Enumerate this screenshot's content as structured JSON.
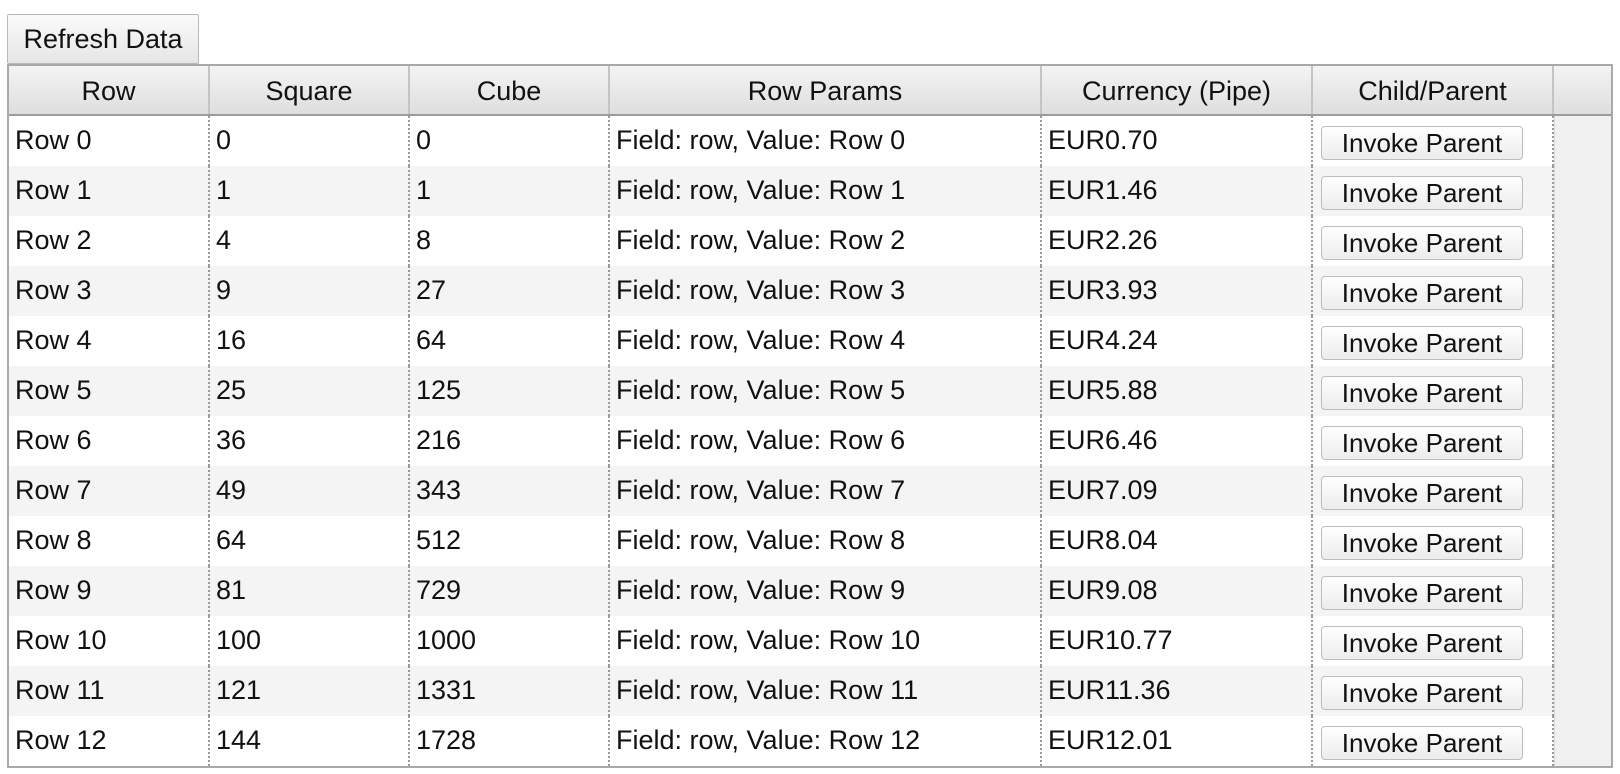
{
  "toolbar": {
    "refresh_label": "Refresh Data"
  },
  "grid": {
    "columns": [
      "Row",
      "Square",
      "Cube",
      "Row Params",
      "Currency (Pipe)",
      "Child/Parent"
    ],
    "rows": [
      {
        "row": "Row 0",
        "square": "0",
        "cube": "0",
        "params": "Field: row, Value: Row 0",
        "currency": "EUR0.70",
        "action": "Invoke Parent"
      },
      {
        "row": "Row 1",
        "square": "1",
        "cube": "1",
        "params": "Field: row, Value: Row 1",
        "currency": "EUR1.46",
        "action": "Invoke Parent"
      },
      {
        "row": "Row 2",
        "square": "4",
        "cube": "8",
        "params": "Field: row, Value: Row 2",
        "currency": "EUR2.26",
        "action": "Invoke Parent"
      },
      {
        "row": "Row 3",
        "square": "9",
        "cube": "27",
        "params": "Field: row, Value: Row 3",
        "currency": "EUR3.93",
        "action": "Invoke Parent"
      },
      {
        "row": "Row 4",
        "square": "16",
        "cube": "64",
        "params": "Field: row, Value: Row 4",
        "currency": "EUR4.24",
        "action": "Invoke Parent"
      },
      {
        "row": "Row 5",
        "square": "25",
        "cube": "125",
        "params": "Field: row, Value: Row 5",
        "currency": "EUR5.88",
        "action": "Invoke Parent"
      },
      {
        "row": "Row 6",
        "square": "36",
        "cube": "216",
        "params": "Field: row, Value: Row 6",
        "currency": "EUR6.46",
        "action": "Invoke Parent"
      },
      {
        "row": "Row 7",
        "square": "49",
        "cube": "343",
        "params": "Field: row, Value: Row 7",
        "currency": "EUR7.09",
        "action": "Invoke Parent"
      },
      {
        "row": "Row 8",
        "square": "64",
        "cube": "512",
        "params": "Field: row, Value: Row 8",
        "currency": "EUR8.04",
        "action": "Invoke Parent"
      },
      {
        "row": "Row 9",
        "square": "81",
        "cube": "729",
        "params": "Field: row, Value: Row 9",
        "currency": "EUR9.08",
        "action": "Invoke Parent"
      },
      {
        "row": "Row 10",
        "square": "100",
        "cube": "1000",
        "params": "Field: row, Value: Row 10",
        "currency": "EUR10.77",
        "action": "Invoke Parent"
      },
      {
        "row": "Row 11",
        "square": "121",
        "cube": "1331",
        "params": "Field: row, Value: Row 11",
        "currency": "EUR11.36",
        "action": "Invoke Parent"
      },
      {
        "row": "Row 12",
        "square": "144",
        "cube": "1728",
        "params": "Field: row, Value: Row 12",
        "currency": "EUR12.01",
        "action": "Invoke Parent"
      }
    ]
  }
}
